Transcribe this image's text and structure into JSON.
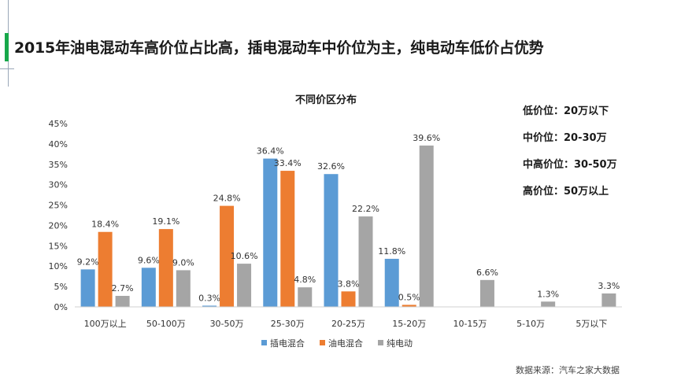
{
  "header": {
    "title": "2015年油电混动车高价位占比高，插电混动车中价位为主，纯电动车低价占优势"
  },
  "notes": [
    "低价位：20万以下",
    "中价位：20-30万",
    "中高价位：30-50万",
    "高价位：50万以上"
  ],
  "source": "数据来源：汽车之家大数据",
  "colors": {
    "accent": "#17a84a",
    "series": [
      "#5b9bd5",
      "#ed7d31",
      "#a5a5a5"
    ]
  },
  "chart_data": {
    "type": "bar",
    "title": "不同价区分布",
    "categories": [
      "100万以上",
      "50-100万",
      "30-50万",
      "25-30万",
      "20-25万",
      "15-20万",
      "10-15万",
      "5-10万",
      "5万以下"
    ],
    "series": [
      {
        "name": "插电混合",
        "values": [
          9.2,
          9.6,
          0.3,
          36.4,
          32.6,
          11.8,
          null,
          null,
          null
        ],
        "labels": [
          "9.2%",
          "9.6%",
          "0.3%",
          "36.4%",
          "32.6%",
          "11.8%",
          "",
          "",
          ""
        ]
      },
      {
        "name": "油电混合",
        "values": [
          18.4,
          19.1,
          24.8,
          33.4,
          3.8,
          0.5,
          null,
          null,
          null
        ],
        "labels": [
          "18.4%",
          "19.1%",
          "24.8%",
          "33.4%",
          "3.8%",
          "0.5%",
          "",
          "",
          ""
        ]
      },
      {
        "name": "纯电动",
        "values": [
          2.7,
          9.0,
          10.6,
          4.8,
          22.2,
          39.6,
          6.6,
          1.3,
          3.3
        ],
        "labels": [
          "2.7%",
          "9.0%",
          "10.6%",
          "4.8%",
          "22.2%",
          "39.6%",
          "6.6%",
          "1.3%",
          "3.3%"
        ]
      }
    ],
    "yticks": [
      "0%",
      "5%",
      "10%",
      "15%",
      "20%",
      "25%",
      "30%",
      "35%",
      "40%",
      "45%"
    ],
    "ylim": [
      0,
      45
    ],
    "legend_position": "bottom",
    "grid": false
  }
}
